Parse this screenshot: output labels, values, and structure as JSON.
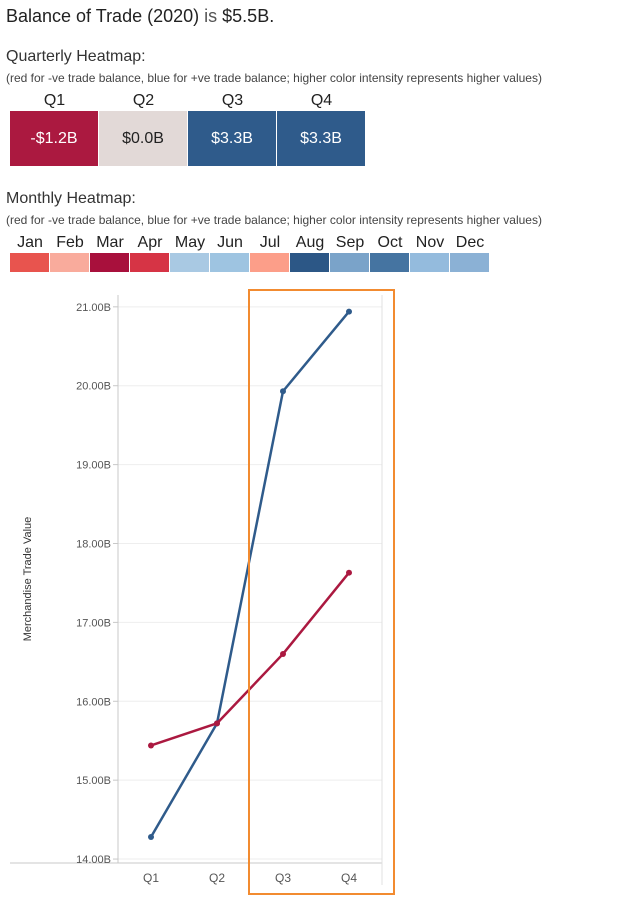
{
  "header": {
    "title_prefix": "Balance of Trade (2020)",
    "title_is": "is",
    "title_value": "$5.5B."
  },
  "quarterly": {
    "title": "Quarterly Heatmap:",
    "note": "(red for -ve trade balance, blue for +ve trade balance; higher color intensity represents higher values)",
    "quarters": [
      {
        "label": "Q1",
        "value": "-$1.2B",
        "color": "#ab1940",
        "text_color": "#ffffff"
      },
      {
        "label": "Q2",
        "value": "$0.0B",
        "color": "#e2d9d7",
        "text_color": "#222222"
      },
      {
        "label": "Q3",
        "value": "$3.3B",
        "color": "#2f5b8b",
        "text_color": "#ffffff"
      },
      {
        "label": "Q4",
        "value": "$3.3B",
        "color": "#2f5b8b",
        "text_color": "#ffffff"
      }
    ]
  },
  "monthly": {
    "title": "Monthly Heatmap:",
    "note": "(red for -ve trade balance, blue for +ve trade balance; higher color intensity represents higher values)",
    "months": [
      {
        "label": "Jan",
        "color": "#e8544e"
      },
      {
        "label": "Feb",
        "color": "#f9ab9c"
      },
      {
        "label": "Mar",
        "color": "#a8103c"
      },
      {
        "label": "Apr",
        "color": "#d63445"
      },
      {
        "label": "May",
        "color": "#a9c9e3"
      },
      {
        "label": "Jun",
        "color": "#9ec4e1"
      },
      {
        "label": "Jul",
        "color": "#fc9e89"
      },
      {
        "label": "Aug",
        "color": "#2c5786"
      },
      {
        "label": "Sep",
        "color": "#7aa3c9"
      },
      {
        "label": "Oct",
        "color": "#4574a1"
      },
      {
        "label": "Nov",
        "color": "#94bbdd"
      },
      {
        "label": "Dec",
        "color": "#8bb1d5"
      }
    ]
  },
  "chart_data": {
    "type": "line",
    "categories": [
      "Q1",
      "Q2",
      "Q3",
      "Q4"
    ],
    "ylabel": "Merchandise Trade Value",
    "ylim": [
      13.95,
      21.15
    ],
    "yticks": [
      14,
      15,
      16,
      17,
      18,
      19,
      20,
      21
    ],
    "ytick_labels": [
      "14.00B",
      "15.00B",
      "16.00B",
      "17.00B",
      "18.00B",
      "19.00B",
      "20.00B",
      "21.00B"
    ],
    "grid": true,
    "series": [
      {
        "color": "#2f5b8b",
        "values": [
          14.28,
          15.72,
          19.93,
          20.94
        ]
      },
      {
        "color": "#ab1940",
        "values": [
          15.44,
          15.72,
          16.6,
          17.63
        ]
      }
    ],
    "highlight_categories": [
      "Q3",
      "Q4"
    ],
    "highlight_color": "#f28b30"
  }
}
